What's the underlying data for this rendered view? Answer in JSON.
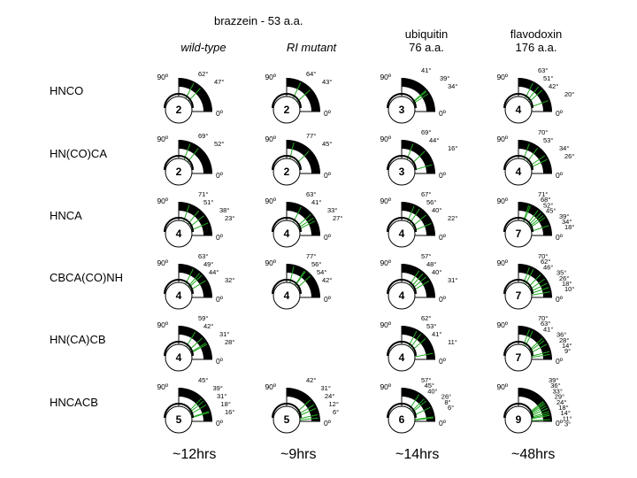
{
  "title": "brazzein - 53 a.a.",
  "column_headers": [
    {
      "label": "wild-type"
    },
    {
      "label": "RI mutant"
    },
    {
      "label": "ubiquitin",
      "sublabel": "76 a.a."
    },
    {
      "label": "flavodoxin",
      "sublabel": "176 a.a."
    }
  ],
  "row_labels": [
    "HNCO",
    "HN(CO)CA",
    "HNCA",
    "CBCA(CO)NH",
    "HN(CA)CB",
    "HNCACB"
  ],
  "axis_labels": {
    "top": "90º",
    "right": "0º"
  },
  "cells": [
    [
      {
        "number": "2",
        "angles": [
          "62°",
          "47°"
        ]
      },
      {
        "number": "2",
        "angles": [
          "64°",
          "43°"
        ]
      },
      {
        "number": "3",
        "angles": [
          "41°",
          "39°",
          "34°"
        ]
      },
      {
        "number": "4",
        "angles": [
          "63°",
          "51°",
          "42°",
          "20°"
        ]
      }
    ],
    [
      {
        "number": "2",
        "angles": [
          "69°",
          "52°"
        ]
      },
      {
        "number": "2",
        "angles": [
          "77°",
          "45°"
        ]
      },
      {
        "number": "3",
        "angles": [
          "69°",
          "44°",
          "16°"
        ]
      },
      {
        "number": "4",
        "angles": [
          "70°",
          "53°",
          "34°",
          "26°"
        ]
      }
    ],
    [
      {
        "number": "4",
        "angles": [
          "71°",
          "51°",
          "38°",
          "23°"
        ]
      },
      {
        "number": "4",
        "angles": [
          "63°",
          "41°",
          "33°",
          "27°"
        ]
      },
      {
        "number": "4",
        "angles": [
          "67°",
          "56°",
          "40°",
          "22°"
        ]
      },
      {
        "number": "7",
        "angles": [
          "71°",
          "68°",
          "52°",
          "45°",
          "39°",
          "34°",
          "18°"
        ]
      }
    ],
    [
      {
        "number": "4",
        "angles": [
          "63°",
          "49°",
          "44°",
          "32°"
        ]
      },
      {
        "number": "4",
        "angles": [
          "77°",
          "56°",
          "54°",
          "42°"
        ]
      },
      {
        "number": "4",
        "angles": [
          "57°",
          "48°",
          "40°",
          "31°"
        ]
      },
      {
        "number": "7",
        "angles": [
          "70°",
          "62°",
          "46°",
          "35°",
          "26°",
          "18°",
          "10°"
        ]
      }
    ],
    [
      {
        "number": "4",
        "angles": [
          "59°",
          "42°",
          "31°",
          "28°"
        ]
      },
      null,
      {
        "number": "4",
        "angles": [
          "62°",
          "53°",
          "41°",
          "11°"
        ]
      },
      {
        "number": "7",
        "angles": [
          "70°",
          "63°",
          "41°",
          "36°",
          "28°",
          "14°",
          "9°"
        ]
      }
    ],
    [
      {
        "number": "5",
        "angles": [
          "45°",
          "39°",
          "31°",
          "18°",
          "16°"
        ]
      },
      {
        "number": "5",
        "angles": [
          "42°",
          "31°",
          "24°",
          "12°",
          "6°"
        ]
      },
      {
        "number": "6",
        "angles": [
          "57°",
          "45°",
          "40°",
          "26°",
          "8°",
          "6°"
        ]
      },
      {
        "number": "9",
        "angles": [
          "39°",
          "36°",
          "33°",
          "29°",
          "24°",
          "18°",
          "14°",
          "11°",
          "3°"
        ]
      }
    ]
  ],
  "times": [
    "~12hrs",
    "~9hrs",
    "~14hrs",
    "~48hrs"
  ]
}
